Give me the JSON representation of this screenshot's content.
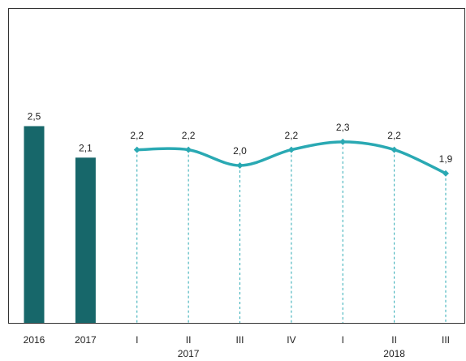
{
  "chart_data": {
    "type": "combo",
    "categories": [
      "2016",
      "2017",
      "I",
      "II",
      "III",
      "IV",
      "I",
      "II",
      "III"
    ],
    "groups": [
      {
        "label": "2017",
        "start": 2,
        "end": 5
      },
      {
        "label": "2018",
        "start": 6,
        "end": 8
      }
    ],
    "series": [
      {
        "type": "bar",
        "color": "#17676a",
        "values": [
          2.5,
          2.1,
          null,
          null,
          null,
          null,
          null,
          null,
          null
        ],
        "value_labels": [
          "2,5",
          "2,1",
          null,
          null,
          null,
          null,
          null,
          null,
          null
        ]
      },
      {
        "type": "line",
        "color": "#2aa9b3",
        "values": [
          null,
          null,
          2.2,
          2.2,
          2.0,
          2.2,
          2.3,
          2.2,
          1.9
        ],
        "value_labels": [
          null,
          null,
          "2,2",
          "2,2",
          "2,0",
          "2,2",
          "2,3",
          "2,2",
          "1,9"
        ]
      }
    ],
    "ylim": [
      0,
      4
    ]
  }
}
